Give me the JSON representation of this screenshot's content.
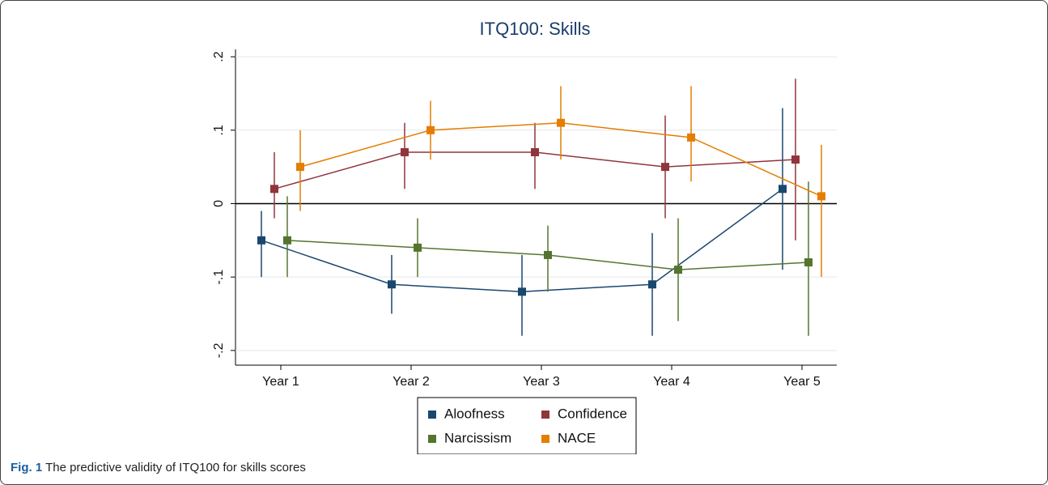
{
  "chart_data": {
    "type": "errorbar_line",
    "title": "ITQ100: Skills",
    "caption_label": "Fig. 1",
    "caption": "The predictive validity of ITQ100 for skills scores",
    "categories": [
      "Year 1",
      "Year 2",
      "Year 3",
      "Year 4",
      "Year 5"
    ],
    "series": [
      {
        "name": "Aloofness",
        "color": "#1a476f",
        "values": [
          -0.05,
          -0.11,
          -0.12,
          -0.11,
          0.02
        ],
        "lower": [
          -0.1,
          -0.15,
          -0.18,
          -0.18,
          -0.09
        ],
        "upper": [
          -0.01,
          -0.07,
          -0.07,
          -0.04,
          0.13
        ]
      },
      {
        "name": "Confidence",
        "color": "#90353b",
        "values": [
          0.02,
          0.07,
          0.07,
          0.05,
          0.06
        ],
        "lower": [
          -0.02,
          0.02,
          0.02,
          -0.02,
          -0.05
        ],
        "upper": [
          0.07,
          0.11,
          0.11,
          0.12,
          0.17
        ]
      },
      {
        "name": "Narcissism",
        "color": "#55752f",
        "values": [
          -0.05,
          -0.06,
          -0.07,
          -0.09,
          -0.08
        ],
        "lower": [
          -0.1,
          -0.1,
          -0.12,
          -0.16,
          -0.18
        ],
        "upper": [
          0.01,
          -0.02,
          -0.03,
          -0.02,
          0.03
        ]
      },
      {
        "name": "NACE",
        "color": "#e37e00",
        "values": [
          0.05,
          0.1,
          0.11,
          0.09,
          0.01
        ],
        "lower": [
          -0.01,
          0.06,
          0.06,
          0.03,
          -0.1
        ],
        "upper": [
          0.1,
          0.14,
          0.16,
          0.16,
          0.08
        ]
      }
    ],
    "ylim": [
      -0.22,
      0.21
    ],
    "yticks": [
      {
        "value": -0.2,
        "label": "-.2"
      },
      {
        "value": -0.1,
        "label": "-.1"
      },
      0,
      {
        "value": 0.1,
        "label": ".1"
      },
      {
        "value": 0.2,
        "label": ".2"
      }
    ],
    "grid": true,
    "reference_line": 0,
    "legend_position": "bottom"
  }
}
